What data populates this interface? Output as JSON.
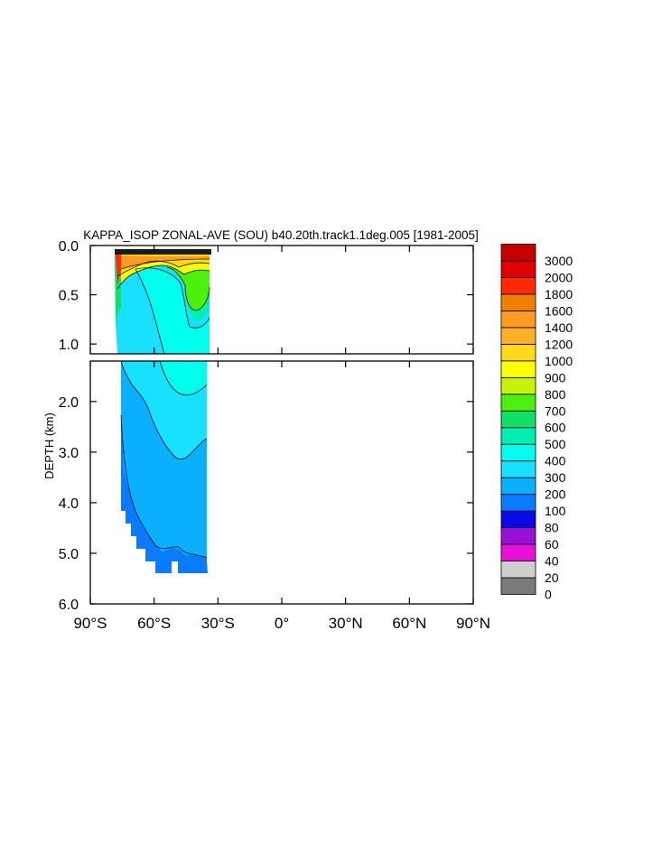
{
  "chart_data": {
    "type": "heatmap",
    "title": "KAPPA_ISOP ZONAL-AVE (SOU) b40.20th.track1.1deg.005 [1981-2005]",
    "ylabel": "DEPTH (km)",
    "x_ticks": [
      "90°S",
      "60°S",
      "30°S",
      "0°",
      "30°N",
      "60°N",
      "90°N"
    ],
    "x_tick_values": [
      -90,
      -60,
      -30,
      0,
      30,
      60,
      90
    ],
    "x_range": [
      -90,
      90
    ],
    "upper_panel": {
      "y_range": [
        0,
        1.1
      ],
      "y_ticks": [
        "0.0",
        "0.5",
        "1.0"
      ],
      "y_tick_values": [
        0,
        0.5,
        1.0
      ]
    },
    "lower_panel": {
      "y_range": [
        1.2,
        6.0
      ],
      "y_ticks": [
        "2.0",
        "3.0",
        "4.0",
        "5.0",
        "6.0"
      ],
      "y_tick_values": [
        2,
        3,
        4,
        5,
        6
      ]
    },
    "colorbar": {
      "levels": [
        "0",
        "20",
        "40",
        "60",
        "80",
        "100",
        "200",
        "300",
        "400",
        "500",
        "600",
        "700",
        "800",
        "900",
        "1000",
        "1200",
        "1400",
        "1600",
        "1800",
        "2000",
        "3000"
      ],
      "colors": [
        "#7a7a7a",
        "#cfcfcf",
        "#e80fd8",
        "#9a10d6",
        "#0a0ae8",
        "#0a7aff",
        "#0ab0ff",
        "#18e1ff",
        "#00ffec",
        "#00efb0",
        "#10e06a",
        "#4cf00a",
        "#c8f20a",
        "#ffff00",
        "#ffd81a",
        "#ffb029",
        "#ff9a22",
        "#f07e00",
        "#ff2a00",
        "#e00000",
        "#c40000"
      ]
    }
  }
}
